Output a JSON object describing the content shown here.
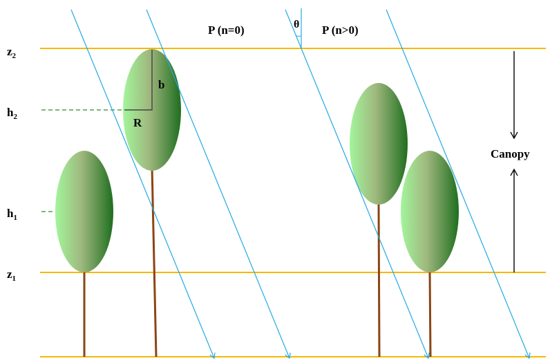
{
  "labels": {
    "z2": "z",
    "z2_sub": "2",
    "h2": "h",
    "h2_sub": "2",
    "h1": "h",
    "h1_sub": "1",
    "z1": "z",
    "z1_sub": "1",
    "b": "b",
    "r": "R",
    "theta": "θ",
    "p_n0": "P (n=0)",
    "p_n_gt0": "P (n>0)",
    "canopy": "Canopy"
  },
  "colors": {
    "level_line": "#f5b800",
    "ray": "#22a9e6",
    "height_dash": "#2e8b2e",
    "trunk": "#8b4513",
    "crown_light": "#a3f59c",
    "crown_mid": "#9fb87e",
    "crown_dark": "#1f6e1f",
    "text": "#000000"
  }
}
